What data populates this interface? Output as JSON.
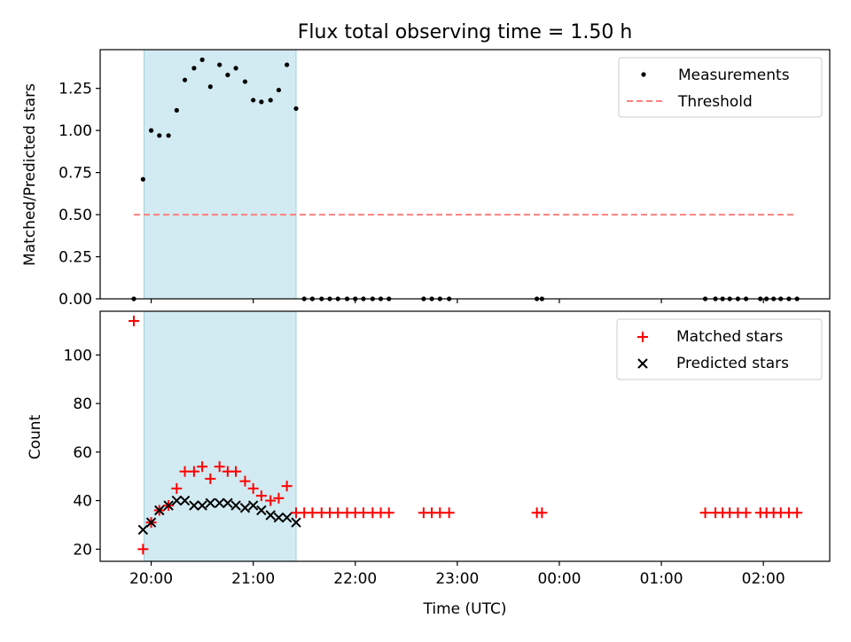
{
  "title": "Flux total observing time = 1.50 h",
  "chart_data": [
    {
      "type": "scatter",
      "ylabel": "Matched/Predicted stars",
      "ylim": [
        0,
        1.48
      ],
      "yticks": [
        0.0,
        0.25,
        0.5,
        0.75,
        1.0,
        1.25
      ],
      "ytick_labels": [
        "0.00",
        "0.25",
        "0.50",
        "0.75",
        "1.00",
        "1.25"
      ],
      "threshold": {
        "name": "Threshold",
        "y": 0.5,
        "x_start": 19.83,
        "x_end": 26.33,
        "color": "#ff7f7f"
      },
      "highlight": {
        "x_start": 19.93,
        "x_end": 21.42,
        "color": "#add8e6"
      },
      "legend": {
        "position": "top-right",
        "entries": [
          "Measurements",
          "Threshold"
        ]
      },
      "series": [
        {
          "name": "Measurements",
          "color": "#000000",
          "x": [
            19.83,
            19.92,
            20.0,
            20.08,
            20.17,
            20.25,
            20.33,
            20.42,
            20.5,
            20.58,
            20.67,
            20.75,
            20.83,
            20.92,
            21.0,
            21.08,
            21.17,
            21.25,
            21.33,
            21.42,
            21.5,
            21.58,
            21.67,
            21.75,
            21.83,
            21.92,
            22.0,
            22.08,
            22.17,
            22.25,
            22.33,
            22.67,
            22.75,
            22.83,
            22.92,
            23.78,
            23.83,
            25.43,
            25.53,
            25.6,
            25.67,
            25.75,
            25.83,
            25.97,
            26.03,
            26.1,
            26.17,
            26.25,
            26.33
          ],
          "y": [
            0.0,
            0.71,
            1.0,
            0.97,
            0.97,
            1.12,
            1.3,
            1.37,
            1.42,
            1.26,
            1.39,
            1.33,
            1.37,
            1.29,
            1.18,
            1.17,
            1.18,
            1.24,
            1.39,
            1.13,
            0,
            0,
            0,
            0,
            0,
            0,
            0,
            0,
            0,
            0,
            0,
            0,
            0,
            0,
            0,
            0,
            0,
            0,
            0,
            0,
            0,
            0,
            0,
            0,
            0,
            0,
            0,
            0,
            0
          ]
        }
      ]
    },
    {
      "type": "scatter",
      "xlabel": "Time (UTC)",
      "ylabel": "Count",
      "ylim": [
        15,
        118
      ],
      "yticks": [
        20,
        40,
        60,
        80,
        100
      ],
      "ytick_labels": [
        "20",
        "40",
        "60",
        "80",
        "100"
      ],
      "xlim": [
        19.5,
        26.65
      ],
      "xticks": [
        20,
        21,
        22,
        23,
        24,
        25,
        26
      ],
      "xtick_labels": [
        "20:00",
        "21:00",
        "22:00",
        "23:00",
        "00:00",
        "01:00",
        "02:00"
      ],
      "highlight": {
        "x_start": 19.93,
        "x_end": 21.42,
        "color": "#add8e6"
      },
      "legend": {
        "position": "top-right",
        "entries": [
          "Matched stars",
          "Predicted stars"
        ]
      },
      "series": [
        {
          "name": "Matched stars",
          "color": "#ff0000",
          "marker": "+",
          "x": [
            19.83,
            19.92,
            20.0,
            20.08,
            20.17,
            20.25,
            20.33,
            20.42,
            20.5,
            20.58,
            20.67,
            20.75,
            20.83,
            20.92,
            21.0,
            21.08,
            21.17,
            21.25,
            21.33,
            21.42,
            21.5,
            21.58,
            21.67,
            21.75,
            21.83,
            21.92,
            22.0,
            22.08,
            22.17,
            22.25,
            22.33,
            22.67,
            22.75,
            22.83,
            22.92,
            23.78,
            23.83,
            25.43,
            25.53,
            25.6,
            25.67,
            25.75,
            25.83,
            25.97,
            26.03,
            26.1,
            26.17,
            26.25,
            26.33
          ],
          "y": [
            114,
            20,
            31,
            36,
            38,
            45,
            52,
            52,
            54,
            49,
            54,
            52,
            52,
            48,
            45,
            42,
            40,
            41,
            46,
            35,
            35,
            35,
            35,
            35,
            35,
            35,
            35,
            35,
            35,
            35,
            35,
            35,
            35,
            35,
            35,
            35,
            35,
            35,
            35,
            35,
            35,
            35,
            35,
            35,
            35,
            35,
            35,
            35,
            35
          ]
        },
        {
          "name": "Predicted stars",
          "color": "#000000",
          "marker": "x",
          "x": [
            19.92,
            20.0,
            20.08,
            20.17,
            20.25,
            20.33,
            20.42,
            20.5,
            20.58,
            20.67,
            20.75,
            20.83,
            20.92,
            21.0,
            21.08,
            21.17,
            21.25,
            21.33,
            21.42
          ],
          "y": [
            28,
            31,
            36,
            38,
            40,
            40,
            38,
            38,
            39,
            39,
            39,
            38,
            37,
            38,
            36,
            34,
            33,
            33,
            31
          ]
        }
      ]
    }
  ]
}
